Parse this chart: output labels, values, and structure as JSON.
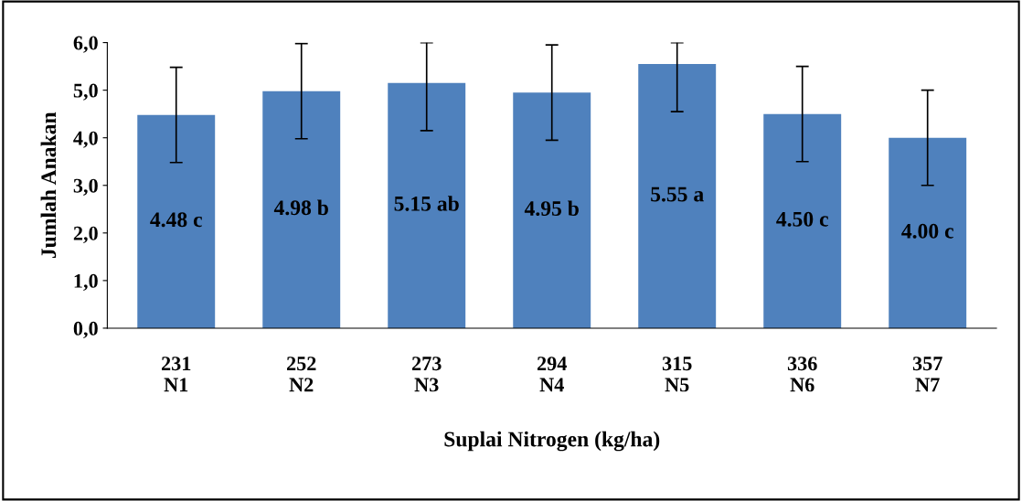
{
  "chart_data": {
    "type": "bar",
    "categories": [
      "231\nN1",
      "252\nN2",
      "273\nN3",
      "294\nN4",
      "315\nN5",
      "336\nN6",
      "357\nN7"
    ],
    "values": [
      4.48,
      4.98,
      5.15,
      4.95,
      5.55,
      4.5,
      4.0
    ],
    "errors": [
      1.0,
      1.0,
      [
        4.15,
        6.0
      ],
      1.0,
      [
        4.55,
        6.0
      ],
      1.0,
      1.0
    ],
    "value_labels": [
      "4.48 c",
      "4.98 b",
      "5.15 ab",
      "4.95 b",
      "5.55 a",
      "4.50 c",
      "4.00 c"
    ],
    "color": "#4f81bd",
    "xlabel": "Suplai Nitrogen (kg/ha)",
    "ylabel": "Jumlah Anakan",
    "ylim": [
      0,
      6
    ],
    "yticks": [
      {
        "value": 0,
        "label": "0,0"
      },
      {
        "value": 1,
        "label": "1,0"
      },
      {
        "value": 2,
        "label": "2,0"
      },
      {
        "value": 3,
        "label": "3,0"
      },
      {
        "value": 4,
        "label": "4,0"
      },
      {
        "value": 5,
        "label": "5,0"
      },
      {
        "value": 6,
        "label": "6,0"
      }
    ],
    "grid": false,
    "legend": false
  }
}
